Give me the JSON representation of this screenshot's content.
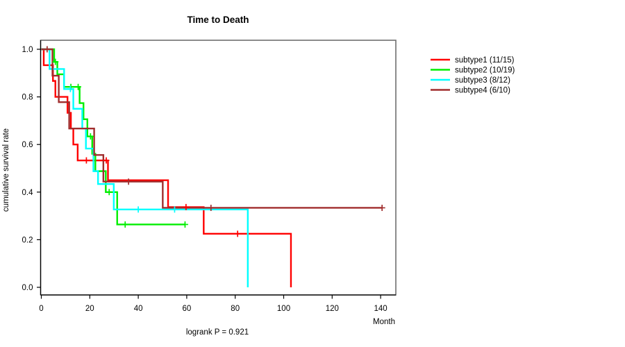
{
  "figure": {
    "title": "Time to Death",
    "xlabel": "Month",
    "ylabel": "cumulative survival rate",
    "annotation": "logrank P = 0.921"
  },
  "chart_data": {
    "type": "line",
    "chart_kind": "kaplan_meier_step",
    "title": "Time to Death",
    "xlabel": "Month",
    "ylabel": "cumulative survival rate",
    "annotation": "logrank P = 0.921",
    "xlim": [
      0,
      146
    ],
    "ylim": [
      0,
      1
    ],
    "x_ticks": [
      0,
      20,
      40,
      60,
      80,
      100,
      120,
      140
    ],
    "y_ticks": [
      [
        0.0,
        "0.0"
      ],
      [
        0.2,
        "0.2"
      ],
      [
        0.4,
        "0.4"
      ],
      [
        0.6,
        "0.6"
      ],
      [
        0.8,
        "0.8"
      ],
      [
        1.0,
        "1.0"
      ]
    ],
    "grid": false,
    "legend_position": "right-outside",
    "series": [
      {
        "name": "subtype1",
        "label": "subtype1 (11/15)",
        "color": "#ff0000",
        "events": 11,
        "n": 15,
        "steps": [
          [
            0,
            1.0
          ],
          [
            1,
            0.933
          ],
          [
            4.8,
            0.867
          ],
          [
            5.8,
            0.8
          ],
          [
            10.8,
            0.733
          ],
          [
            12.2,
            0.667
          ],
          [
            13.2,
            0.6
          ],
          [
            15,
            0.533
          ],
          [
            27.5,
            0.45
          ],
          [
            52.3,
            0.337
          ],
          [
            67,
            0.225
          ],
          [
            103,
            0.0
          ]
        ],
        "censors": [
          [
            18.6,
            0.533
          ],
          [
            26.8,
            0.533
          ],
          [
            59.7,
            0.337
          ],
          [
            81,
            0.225
          ]
        ],
        "end_time": 103,
        "end_censored": false
      },
      {
        "name": "subtype2",
        "label": "subtype2 (10/19)",
        "color": "#00ee00",
        "events": 10,
        "n": 19,
        "steps": [
          [
            0,
            1.0
          ],
          [
            5.3,
            0.947
          ],
          [
            6.6,
            0.895
          ],
          [
            9.4,
            0.842
          ],
          [
            15.8,
            0.774
          ],
          [
            17.4,
            0.706
          ],
          [
            19,
            0.634
          ],
          [
            21,
            0.561
          ],
          [
            22.3,
            0.488
          ],
          [
            26.6,
            0.4
          ],
          [
            31.3,
            0.264
          ]
        ],
        "censors": [
          [
            5.8,
            0.947
          ],
          [
            12.2,
            0.842
          ],
          [
            15.2,
            0.842
          ],
          [
            20.3,
            0.634
          ],
          [
            28,
            0.4
          ],
          [
            34.6,
            0.264
          ],
          [
            59.3,
            0.264
          ]
        ],
        "end_time": 59.3,
        "end_censored": true
      },
      {
        "name": "subtype3",
        "label": "subtype3 (8/12)",
        "color": "#00ffff",
        "events": 8,
        "n": 12,
        "steps": [
          [
            0,
            1.0
          ],
          [
            3.4,
            0.917
          ],
          [
            9.4,
            0.833
          ],
          [
            13.2,
            0.75
          ],
          [
            16.9,
            0.667
          ],
          [
            18.4,
            0.583
          ],
          [
            21.5,
            0.488
          ],
          [
            23.4,
            0.434
          ],
          [
            29.9,
            0.327
          ],
          [
            85.2,
            0.0
          ]
        ],
        "censors": [
          [
            12,
            0.833
          ],
          [
            40,
            0.327
          ],
          [
            55,
            0.327
          ]
        ],
        "end_time": 85.2,
        "end_censored": false
      },
      {
        "name": "subtype4",
        "label": "subtype4 (6/10)",
        "color": "#a02d2d",
        "events": 6,
        "n": 10,
        "steps": [
          [
            0,
            1.0
          ],
          [
            4.6,
            0.889
          ],
          [
            7.2,
            0.778
          ],
          [
            11.5,
            0.667
          ],
          [
            21.8,
            0.556
          ],
          [
            25.6,
            0.444
          ],
          [
            50.1,
            0.334
          ]
        ],
        "censors": [
          [
            2.4,
            1.0
          ],
          [
            36,
            0.444
          ],
          [
            70,
            0.334
          ],
          [
            140.6,
            0.334
          ]
        ],
        "end_time": 140.6,
        "end_censored": true
      }
    ]
  }
}
